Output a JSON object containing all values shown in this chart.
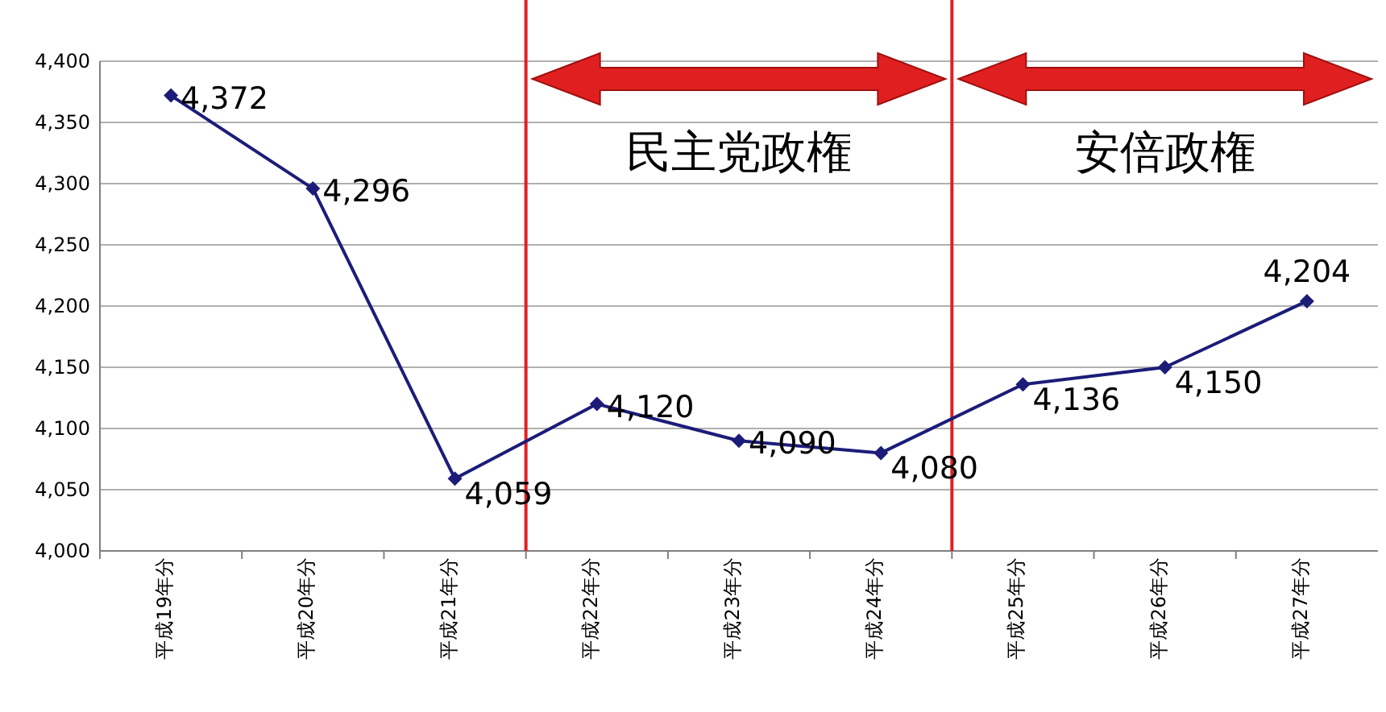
{
  "chart_data": {
    "type": "line",
    "categories": [
      "平成19年分",
      "平成20年分",
      "平成21年分",
      "平成22年分",
      "平成23年分",
      "平成24年分",
      "平成25年分",
      "平成26年分",
      "平成27年分"
    ],
    "series": [
      {
        "color": "#1c1c78",
        "values": [
          4372,
          4296,
          4059,
          4120,
          4090,
          4080,
          4136,
          4150,
          4204
        ]
      }
    ],
    "ylim": [
      4000,
      4400
    ],
    "yticks": [
      {
        "value": 4000,
        "label": "4,000"
      },
      {
        "value": 4050,
        "label": "4,050"
      },
      {
        "value": 4100,
        "label": "4,100"
      },
      {
        "value": 4150,
        "label": "4,150"
      },
      {
        "value": 4200,
        "label": "4,200"
      },
      {
        "value": 4250,
        "label": "4,250"
      },
      {
        "value": 4300,
        "label": "4,300"
      },
      {
        "value": 4350,
        "label": "4,350"
      },
      {
        "value": 4400,
        "label": "4,400"
      }
    ],
    "grid": "y",
    "marker": "diamond",
    "line_style": "solid",
    "value_labels": [
      "4,372",
      "4,296",
      "4,059",
      "4,120",
      "4,090",
      "4,080",
      "4,136",
      "4,150",
      "4,204"
    ],
    "ref_lines": [
      {
        "axis": "x",
        "value": "平成22年分",
        "label": "民主党政権",
        "color": "#e02020"
      },
      {
        "axis": "x",
        "value": "平成25年分",
        "label": "安倍政権",
        "color": "#e02020"
      }
    ]
  }
}
